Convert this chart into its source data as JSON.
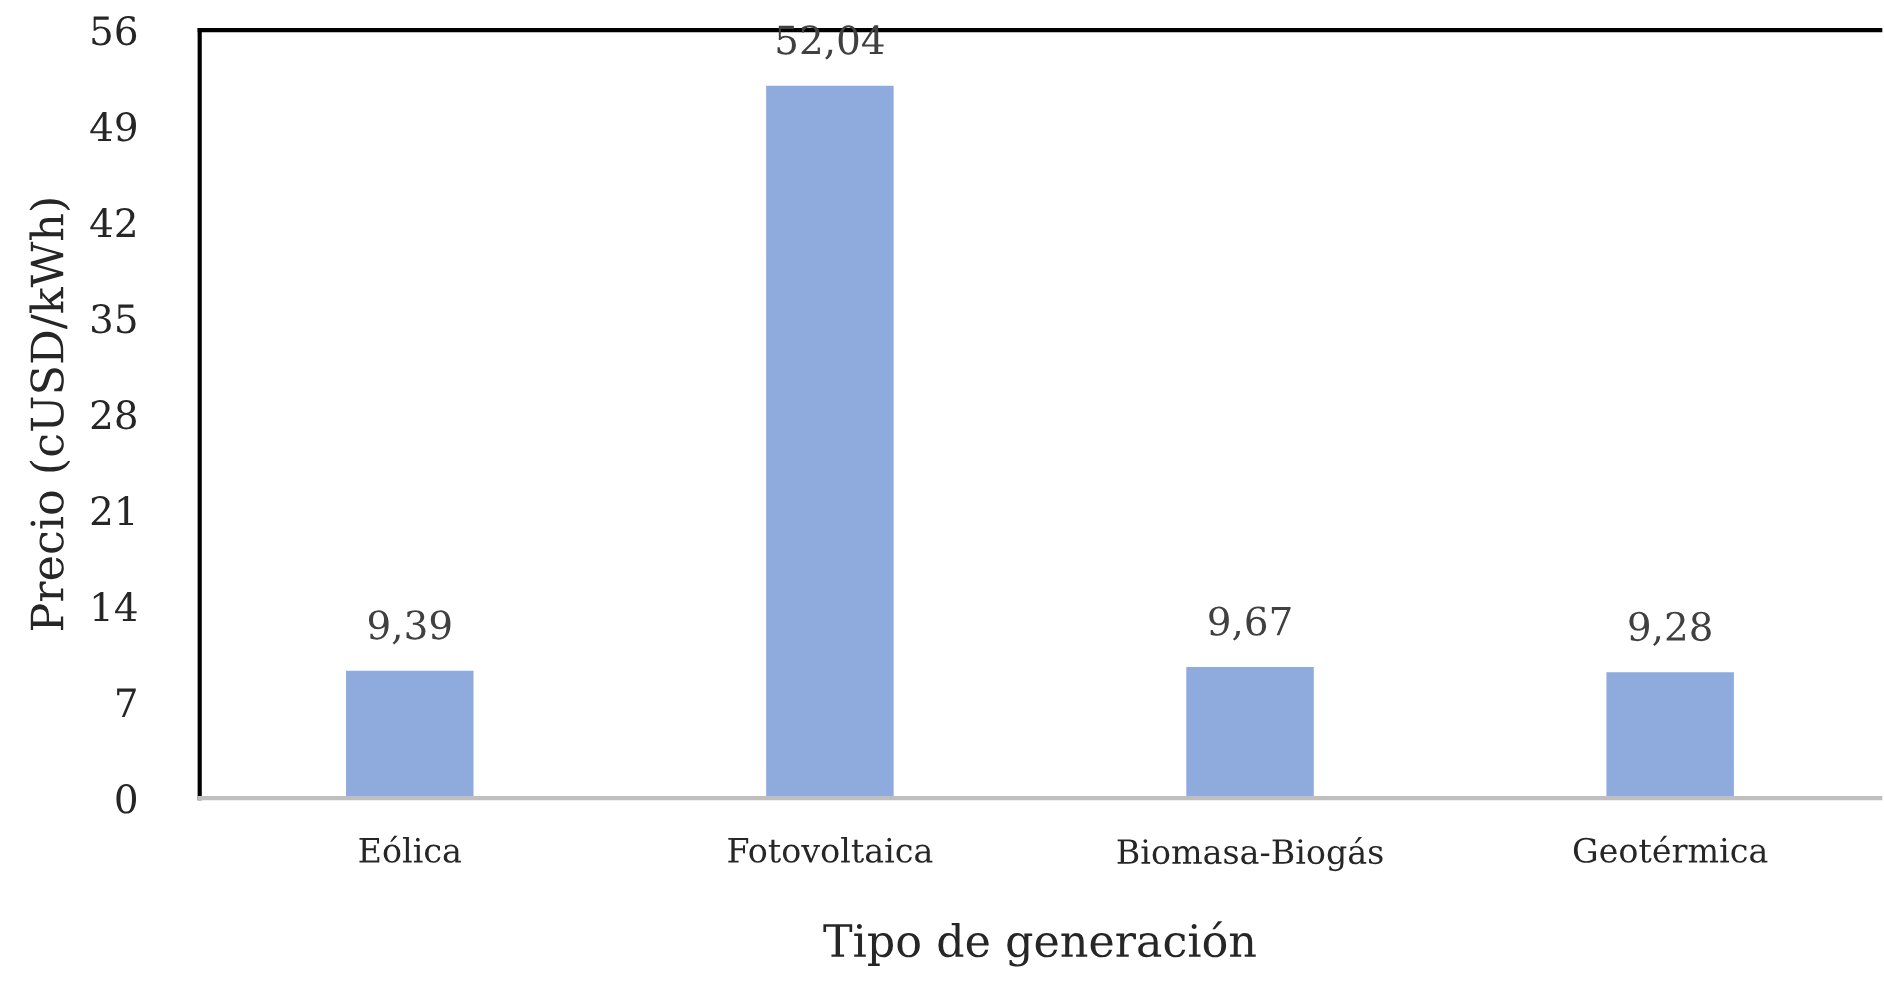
{
  "chart_data": {
    "type": "bar",
    "xlabel": "Tipo de generación",
    "ylabel": "Precio (cUSD/kWh)",
    "categories": [
      "Eólica",
      "Fotovoltaica",
      "Biomasa-Biogás",
      "Geotérmica"
    ],
    "values": [
      9.39,
      52.04,
      9.67,
      9.28
    ],
    "value_labels": [
      "9,39",
      "52,04",
      "9,67",
      "9,28"
    ],
    "color": "#8faadc",
    "ylim": [
      0,
      56
    ],
    "yticks": [
      0,
      7,
      14,
      21,
      28,
      35,
      42,
      49,
      56
    ],
    "grid": false,
    "legend": false
  }
}
